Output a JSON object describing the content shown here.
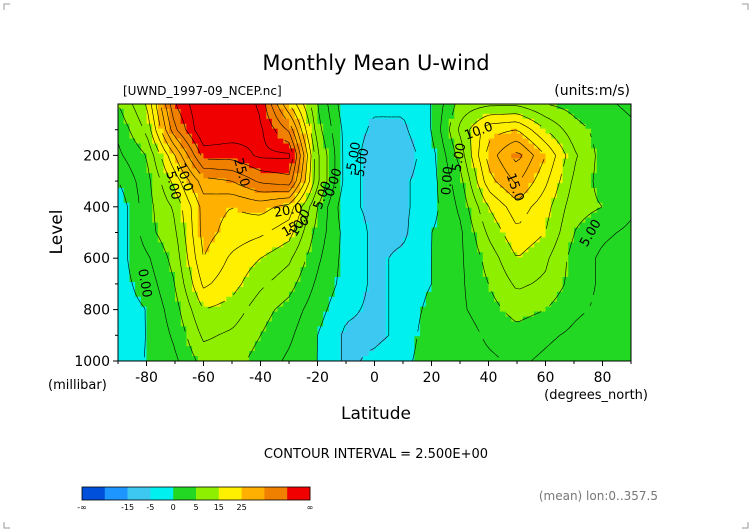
{
  "chart_data": {
    "type": "heatmap",
    "title": "Monthly Mean U-wind",
    "file_label": "[UWND_1997-09_NCEP.nc]",
    "units_label": "(units:m/s)",
    "xlabel": "Latitude",
    "x_unit_label": "(degrees_north)",
    "ylabel": "Level",
    "y_unit_label": "(millibar)",
    "x_ticks": [
      "-80",
      "-60",
      "-40",
      "-20",
      "0",
      "20",
      "40",
      "60",
      "80"
    ],
    "x_tick_values": [
      -80,
      -60,
      -40,
      -20,
      0,
      20,
      40,
      60,
      80
    ],
    "y_ticks": [
      "200",
      "400",
      "600",
      "800",
      "1000"
    ],
    "y_tick_values": [
      200,
      400,
      600,
      800,
      1000
    ],
    "xlim": [
      -90,
      90
    ],
    "ylim": [
      1000,
      0
    ],
    "contour_interval_text": "CONTOUR INTERVAL = 2.500E+00",
    "footer_note": "(mean) lon:0..357.5",
    "contour_labels": [
      {
        "text": "10.0",
        "x": -68,
        "y": 290,
        "rot": 72
      },
      {
        "text": "5.00",
        "x": -72,
        "y": 320,
        "rot": 78
      },
      {
        "text": "0.00",
        "x": -82,
        "y": 700,
        "rot": 80
      },
      {
        "text": "25.0",
        "x": -48,
        "y": 270,
        "rot": 75
      },
      {
        "text": "20.0",
        "x": -30,
        "y": 430,
        "rot": -10
      },
      {
        "text": "15.0",
        "x": -27,
        "y": 490,
        "rot": -30
      },
      {
        "text": "10.0",
        "x": -25,
        "y": 470,
        "rot": -60
      },
      {
        "text": "5.00",
        "x": -17,
        "y": 360,
        "rot": -70
      },
      {
        "text": "0.00",
        "x": -13,
        "y": 310,
        "rot": -72
      },
      {
        "text": "-5.00",
        "x": -6,
        "y": 215,
        "rot": -80
      },
      {
        "text": "5.00",
        "x": -3,
        "y": 230,
        "rot": -80
      },
      {
        "text": "0.00",
        "x": 27,
        "y": 300,
        "rot": -85
      },
      {
        "text": "5.00",
        "x": 31,
        "y": 210,
        "rot": -80
      },
      {
        "text": "10.0",
        "x": 37,
        "y": 120,
        "rot": -20
      },
      {
        "text": "15.0",
        "x": 48,
        "y": 330,
        "rot": 70
      },
      {
        "text": "5.00",
        "x": 77,
        "y": 510,
        "rot": -60
      }
    ],
    "cells": {
      "lat": [
        -90,
        -80,
        -70,
        -60,
        -50,
        -40,
        -30,
        -20,
        -10,
        0,
        10,
        20,
        30,
        40,
        50,
        60,
        70,
        80,
        90
      ],
      "lev": [
        0,
        100,
        200,
        300,
        400,
        500,
        600,
        700,
        800,
        900,
        1000
      ],
      "u": [
        [
          5,
          10,
          25,
          30,
          30,
          27,
          15,
          5,
          -2,
          -2,
          -2,
          0,
          6,
          7,
          7,
          5,
          4,
          3,
          2
        ],
        [
          3,
          8,
          22,
          30,
          29,
          28,
          22,
          6,
          -1,
          -3,
          -3,
          0,
          8,
          14,
          15,
          10,
          6,
          4,
          3
        ],
        [
          2,
          5,
          15,
          26,
          26,
          28,
          28,
          8,
          -1,
          -4,
          -4,
          -1,
          6,
          16,
          21,
          15,
          8,
          4,
          3
        ],
        [
          0,
          4,
          11,
          19,
          20,
          23,
          24,
          8,
          -1,
          -4,
          -3,
          -1,
          4,
          14,
          18,
          13,
          7,
          4,
          3
        ],
        [
          -2,
          4,
          8,
          16,
          15,
          16,
          14,
          5,
          -2,
          -3,
          -3,
          -1,
          3,
          10,
          14,
          11,
          6,
          5,
          3
        ],
        [
          -2,
          4,
          7,
          16,
          14,
          13,
          11,
          4,
          -1,
          -3,
          -3,
          0,
          2,
          8,
          12,
          10,
          5,
          3,
          2
        ],
        [
          -1,
          2,
          6,
          15,
          12,
          10,
          8,
          3,
          -1,
          -3,
          -2,
          0,
          2,
          6,
          10,
          8,
          4,
          2,
          1
        ],
        [
          -1,
          1,
          5,
          13,
          11,
          8,
          6,
          2,
          -1,
          -3,
          -2,
          0,
          2,
          5,
          8,
          7,
          4,
          2,
          1
        ],
        [
          -1,
          0,
          4,
          10,
          9,
          6,
          4,
          1,
          -2,
          -3,
          -2,
          1,
          2,
          4,
          6,
          5,
          3,
          2,
          1
        ],
        [
          -1,
          0,
          3,
          8,
          7,
          5,
          3,
          0,
          -3,
          -3,
          -2,
          2,
          1,
          3,
          4,
          3,
          2,
          1,
          0
        ],
        [
          0,
          0,
          2,
          6,
          6,
          4,
          2,
          0,
          -3,
          -2,
          -1,
          2,
          1,
          2,
          3,
          2,
          1,
          1,
          0
        ]
      ]
    }
  },
  "legend": {
    "colors": [
      "#0050dc",
      "#1e96ff",
      "#3cc8f0",
      "#00f0f0",
      "#22d822",
      "#8ef000",
      "#fff000",
      "#ffb000",
      "#f08000",
      "#f00000"
    ],
    "labels": [
      "-∞",
      "-15",
      "-5",
      "0",
      "5",
      "15",
      "25",
      "∞"
    ]
  }
}
